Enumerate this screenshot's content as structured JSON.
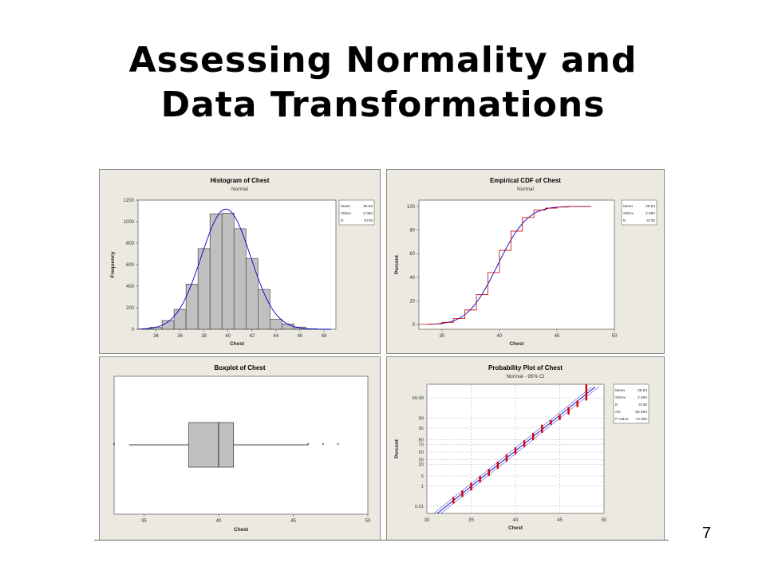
{
  "slide": {
    "title_line1": "Assessing Normality and",
    "title_line2": "Data Transformations",
    "page_number": "7"
  },
  "colors": {
    "panel_bg": "#ece9e0",
    "bar_fill": "#c0c0c0",
    "fit_line": "#0000cc",
    "cdf_step": "#cc0000",
    "points": "#dd0000"
  },
  "chart_data": [
    {
      "type": "bar",
      "title": "Histogram of Chest",
      "subtitle": "Normal",
      "xlabel": "Chest",
      "ylabel": "Frequency",
      "xlim": [
        32.5,
        49
      ],
      "ylim": [
        0,
        1200
      ],
      "xticks": [
        "34",
        "36",
        "38",
        "40",
        "42",
        "44",
        "46",
        "48"
      ],
      "yticks": [
        "0",
        "200",
        "400",
        "600",
        "800",
        "1000",
        "1200"
      ],
      "bins": [
        33,
        34,
        35,
        36,
        37,
        38,
        39,
        40,
        41,
        42,
        43,
        44,
        45,
        46,
        47,
        48
      ],
      "values": [
        3,
        18,
        81,
        185,
        420,
        749,
        1073,
        1079,
        934,
        658,
        370,
        92,
        50,
        21,
        4,
        1
      ],
      "bin_width": 1,
      "stats": [
        {
          "label": "Mean",
          "value": "39.83"
        },
        {
          "label": "StDev",
          "value": "2.050"
        },
        {
          "label": "N",
          "value": "5738"
        }
      ]
    },
    {
      "type": "line",
      "title": "Empirical CDF of Chest",
      "subtitle": "Normal",
      "xlabel": "Chest",
      "ylabel": "Percent",
      "xlim": [
        33,
        50
      ],
      "ylim": [
        0,
        100
      ],
      "xticks": [
        "35",
        "40",
        "45",
        "50"
      ],
      "yticks": [
        "0",
        "20",
        "40",
        "60",
        "80",
        "100"
      ],
      "steps_x": [
        33,
        34,
        35,
        36,
        37,
        38,
        39,
        40,
        41,
        42,
        43,
        44,
        45,
        46,
        47,
        48
      ],
      "steps_y": [
        0.1,
        0.4,
        1.8,
        5,
        12.3,
        25.3,
        44,
        62.8,
        79.1,
        90.6,
        97,
        98.6,
        99.5,
        99.9,
        100,
        100
      ],
      "stats": [
        {
          "label": "Mean",
          "value": "39.83"
        },
        {
          "label": "StDev",
          "value": "2.050"
        },
        {
          "label": "N",
          "value": "5738"
        }
      ]
    },
    {
      "type": "boxplot",
      "title": "Boxplot of Chest",
      "xlabel": "Chest",
      "xlim": [
        33,
        50
      ],
      "xticks": [
        "35",
        "40",
        "45",
        "50"
      ],
      "whisker_low": 34,
      "q1": 38,
      "median": 40,
      "q3": 41,
      "whisker_high": 46,
      "outliers": [
        33,
        46,
        47,
        48
      ]
    },
    {
      "type": "scatter",
      "title": "Probability Plot of Chest",
      "subtitle": "Normal - 95% CI",
      "xlabel": "Chest",
      "ylabel": "Percent",
      "xlim": [
        30,
        50
      ],
      "xticks": [
        "30",
        "35",
        "40",
        "45",
        "50"
      ],
      "yticks": [
        "0.01",
        "1",
        "5",
        "20",
        "30",
        "50",
        "70",
        "80",
        "95",
        "99",
        "99.99"
      ],
      "points_x": [
        33,
        34,
        35,
        36,
        37,
        38,
        39,
        40,
        41,
        42,
        43,
        44,
        45,
        46,
        47,
        48
      ],
      "stats": [
        {
          "label": "Mean",
          "value": "39.83"
        },
        {
          "label": "StDev",
          "value": "2.050"
        },
        {
          "label": "N",
          "value": "5738"
        },
        {
          "label": "AD",
          "value": "55.693"
        },
        {
          "label": "P-Value",
          "value": "<0.005"
        }
      ]
    }
  ]
}
